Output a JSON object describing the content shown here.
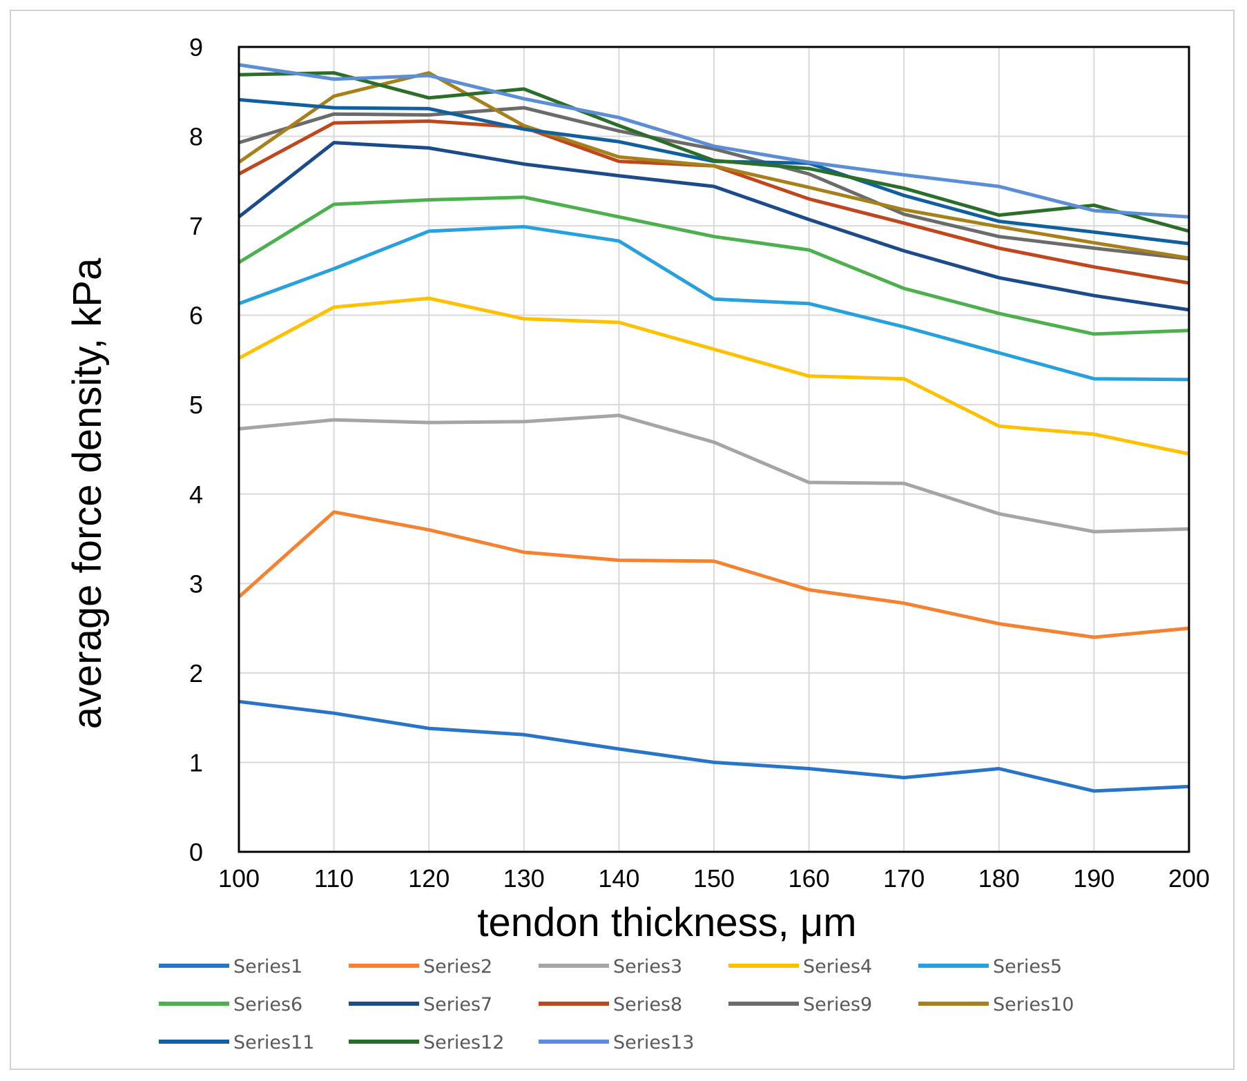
{
  "chart_data": {
    "type": "line",
    "title": "",
    "xlabel": "tendon thickness, μm",
    "ylabel": "average force density, kPa",
    "x": [
      100,
      110,
      120,
      130,
      140,
      150,
      160,
      170,
      180,
      190,
      200
    ],
    "xlim": [
      100,
      200
    ],
    "ylim": [
      0,
      9
    ],
    "yticks": [
      0,
      1,
      2,
      3,
      4,
      5,
      6,
      7,
      8,
      9
    ],
    "grid": true,
    "legend_position": "bottom",
    "series": [
      {
        "name": "Series1",
        "color": "#2874C8",
        "values": [
          1.68,
          1.55,
          1.38,
          1.31,
          1.15,
          1.0,
          0.93,
          0.83,
          0.93,
          0.68,
          0.73
        ]
      },
      {
        "name": "Series2",
        "color": "#F58231",
        "values": [
          2.85,
          3.8,
          3.6,
          3.35,
          3.26,
          3.25,
          2.93,
          2.78,
          2.55,
          2.4,
          2.5
        ]
      },
      {
        "name": "Series3",
        "color": "#A5A5A5",
        "values": [
          4.73,
          4.83,
          4.8,
          4.81,
          4.88,
          4.58,
          4.13,
          4.12,
          3.78,
          3.58,
          3.61
        ]
      },
      {
        "name": "Series4",
        "color": "#FFC000",
        "values": [
          5.52,
          6.09,
          6.19,
          5.96,
          5.92,
          5.62,
          5.32,
          5.29,
          4.76,
          4.67,
          4.45
        ]
      },
      {
        "name": "Series5",
        "color": "#26A1DD",
        "values": [
          6.13,
          6.52,
          6.94,
          6.99,
          6.83,
          6.18,
          6.13,
          5.87,
          5.58,
          5.29,
          5.28
        ]
      },
      {
        "name": "Series6",
        "color": "#4CB04C",
        "values": [
          6.59,
          7.24,
          7.29,
          7.32,
          7.1,
          6.88,
          6.73,
          6.3,
          6.02,
          5.79,
          5.83
        ]
      },
      {
        "name": "Series7",
        "color": "#1B4B8A",
        "values": [
          7.1,
          7.93,
          7.87,
          7.69,
          7.56,
          7.44,
          7.07,
          6.72,
          6.42,
          6.22,
          6.06
        ]
      },
      {
        "name": "Series8",
        "color": "#C0461B",
        "values": [
          7.58,
          8.15,
          8.17,
          8.1,
          7.72,
          7.67,
          7.3,
          7.03,
          6.75,
          6.54,
          6.36
        ]
      },
      {
        "name": "Series9",
        "color": "#6B6B6B",
        "values": [
          7.93,
          8.25,
          8.24,
          8.32,
          8.06,
          7.86,
          7.58,
          7.13,
          6.88,
          6.75,
          6.63
        ]
      },
      {
        "name": "Series10",
        "color": "#A6801A",
        "values": [
          7.71,
          8.45,
          8.71,
          8.12,
          7.77,
          7.67,
          7.43,
          7.18,
          6.99,
          6.81,
          6.64
        ]
      },
      {
        "name": "Series11",
        "color": "#105F9E",
        "values": [
          8.41,
          8.32,
          8.31,
          8.08,
          7.94,
          7.72,
          7.7,
          7.34,
          7.05,
          6.93,
          6.8
        ]
      },
      {
        "name": "Series12",
        "color": "#2A6E2A",
        "values": [
          8.69,
          8.71,
          8.43,
          8.53,
          8.12,
          7.73,
          7.64,
          7.42,
          7.12,
          7.23,
          6.94
        ]
      },
      {
        "name": "Series13",
        "color": "#5B8ED6",
        "values": [
          8.8,
          8.64,
          8.68,
          8.42,
          8.21,
          7.89,
          7.71,
          7.57,
          7.44,
          7.17,
          7.1
        ]
      }
    ]
  }
}
